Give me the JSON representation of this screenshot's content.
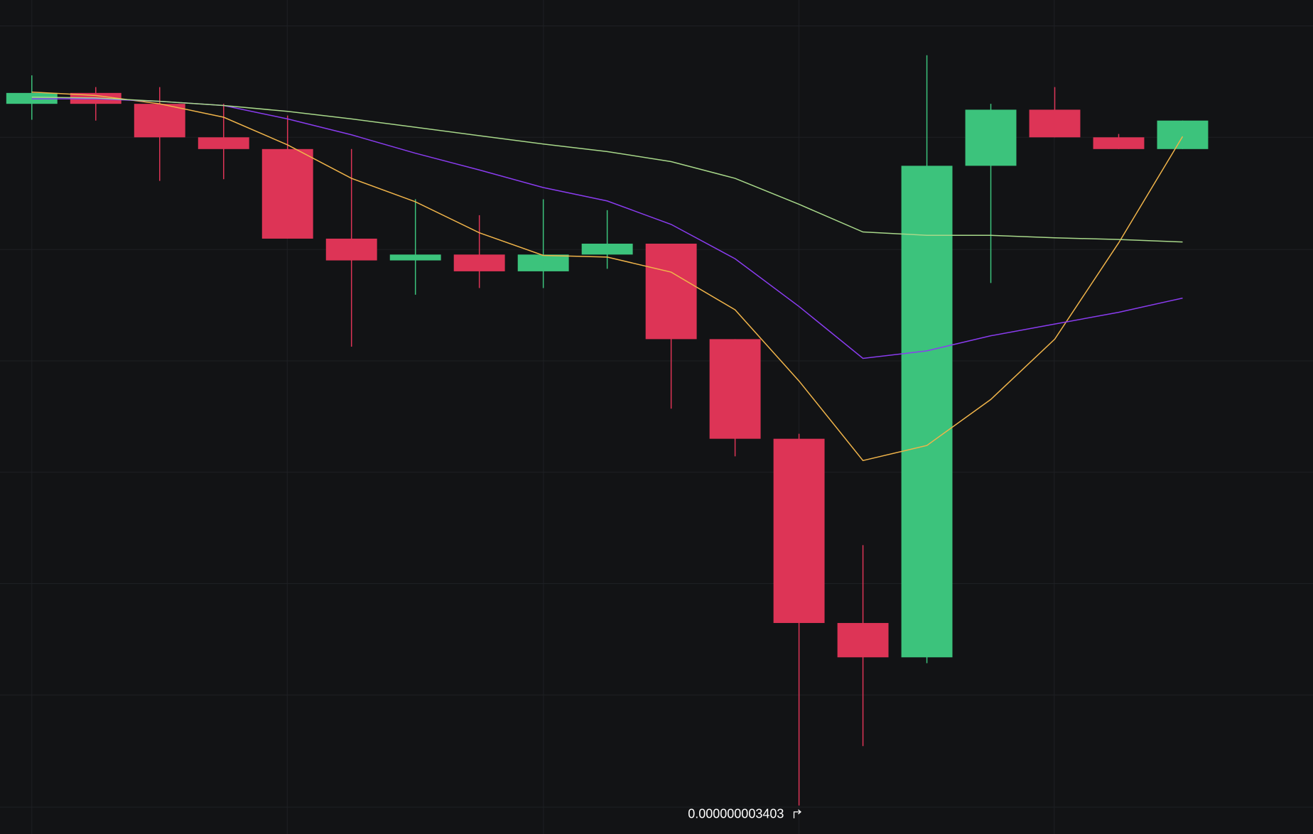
{
  "chart_data": {
    "type": "candlestick",
    "up_color": "#3cc37c",
    "down_color": "#dd3456",
    "open": [
      5.079e-09,
      5.105e-09,
      5.079e-09,
      4.999e-09,
      4.971e-09,
      4.757e-09,
      4.705e-09,
      4.719e-09,
      4.679e-09,
      4.719e-09,
      4.745e-09,
      4.517e-09,
      4.279e-09,
      3.839e-09,
      3.757e-09,
      4.931e-09,
      5.065e-09,
      4.999e-09,
      4.971e-09
    ],
    "high": [
      5.147e-09,
      5.119e-09,
      5.119e-09,
      5.079e-09,
      5.051e-09,
      4.971e-09,
      4.851e-09,
      4.813e-09,
      4.851e-09,
      4.825e-09,
      4.745e-09,
      4.517e-09,
      4.291e-09,
      4.025e-09,
      5.195e-09,
      5.079e-09,
      5.119e-09,
      5.007e-09,
      5.039e-09
    ],
    "low": [
      5.041e-09,
      5.039e-09,
      4.895e-09,
      4.899e-09,
      4.757e-09,
      4.499e-09,
      4.623e-09,
      4.639e-09,
      4.639e-09,
      4.685e-09,
      4.351e-09,
      4.237e-09,
      3.403e-09,
      3.545e-09,
      3.743e-09,
      4.651e-09,
      4.999e-09,
      4.971e-09,
      4.971e-09
    ],
    "close": [
      5.105e-09,
      5.079e-09,
      4.999e-09,
      4.971e-09,
      4.757e-09,
      4.705e-09,
      4.719e-09,
      4.679e-09,
      4.719e-09,
      4.745e-09,
      4.517e-09,
      4.279e-09,
      3.839e-09,
      3.757e-09,
      4.931e-09,
      5.065e-09,
      4.999e-09,
      4.971e-09,
      5.039e-09
    ],
    "series": [
      {
        "color": "#f0b44a",
        "values": [
          5.107e-09,
          5.099e-09,
          5.079e-09,
          5.047e-09,
          4.981e-09,
          4.901e-09,
          4.845e-09,
          4.771e-09,
          4.717e-09,
          4.713e-09,
          4.677e-09,
          4.587e-09,
          4.417e-09,
          4.227e-09,
          4.263e-09,
          4.373e-09,
          4.517e-09,
          4.747e-09,
          5.001e-09
        ]
      },
      {
        "color": "#8a3cf0",
        "values": [
          5.091e-09,
          5.091e-09,
          5.085e-09,
          5.075e-09,
          5.043e-09,
          5.005e-09,
          4.961e-09,
          4.921e-09,
          4.879e-09,
          4.847e-09,
          4.791e-09,
          4.709e-09,
          4.595e-09,
          4.471e-09,
          4.489e-09,
          4.525e-09,
          4.553e-09,
          4.581e-09,
          4.615e-09
        ]
      },
      {
        "color": "#a8d88a",
        "values": [
          5.095e-09,
          5.093e-09,
          5.085e-09,
          5.075e-09,
          5.061e-09,
          5.043e-09,
          5.023e-09,
          5.003e-09,
          4.983e-09,
          4.965e-09,
          4.941e-09,
          4.901e-09,
          4.839e-09,
          4.773e-09,
          4.765e-09,
          4.765e-09,
          4.759e-09,
          4.755e-09,
          4.749e-09
        ]
      }
    ],
    "ylim": [
      3.335e-09,
      5.327e-09
    ],
    "low_marker": {
      "value": 3.403e-09,
      "label": "0.000000003403"
    }
  }
}
